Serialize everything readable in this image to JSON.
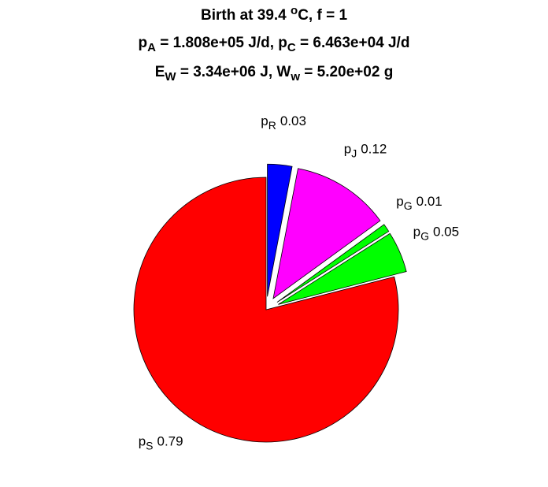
{
  "chart_data": {
    "type": "pie",
    "title": [
      [
        "Birth at 39.4 ",
        {
          "sup": "o"
        },
        "C, f = 1"
      ],
      [
        "p",
        {
          "sub": "A"
        },
        " = 1.808e+05 J/d, p",
        {
          "sub": "C"
        },
        " = 6.463e+04 J/d"
      ],
      [
        "E",
        {
          "sub": "W"
        },
        " = 3.34e+06 J, W",
        {
          "sub": "w"
        },
        " = 5.20e+02 g"
      ]
    ],
    "categories": [
      {
        "base": "p",
        "sub": "R"
      },
      {
        "base": "p",
        "sub": "J"
      },
      {
        "base": "p",
        "sub": "G"
      },
      {
        "base": "p",
        "sub": "G"
      },
      {
        "base": "p",
        "sub": "S"
      }
    ],
    "values": [
      0.03,
      0.12,
      0.01,
      0.05,
      0.79
    ],
    "colors": [
      "#0000ff",
      "#ff00ff",
      "#00ff00",
      "#00ff00",
      "#ff0000"
    ],
    "explode": [
      true,
      true,
      true,
      true,
      false
    ],
    "direction": "clockwise",
    "start": "top"
  }
}
